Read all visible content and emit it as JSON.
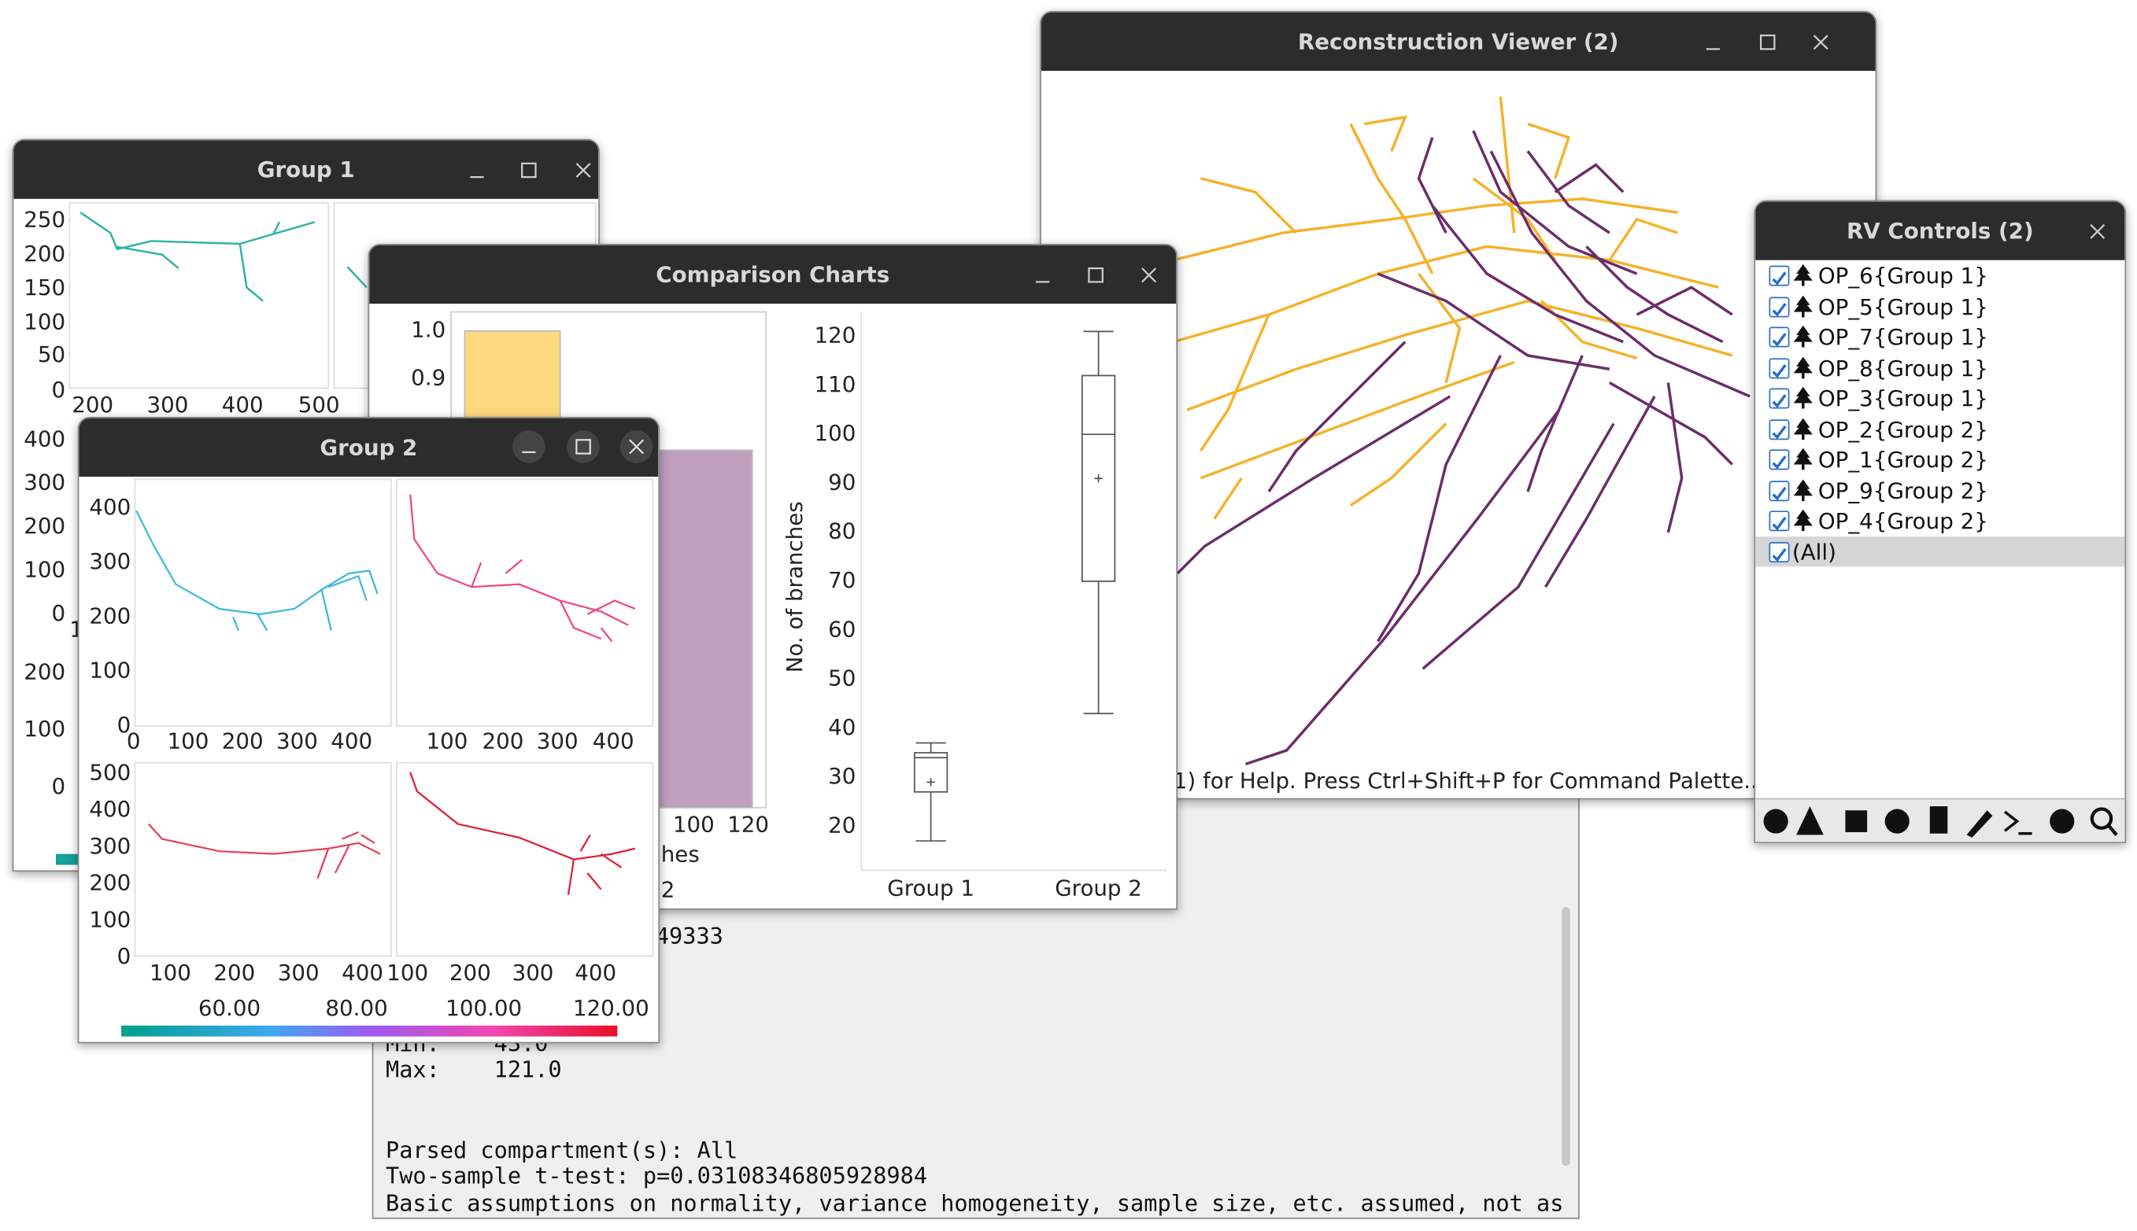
{
  "console": {
    "lines": [
      "49333",
      "Min:    43.0",
      "Max:    121.0",
      "Parsed compartment(s): All",
      "Two-sample t-test: p=0.03108346805928984",
      "Basic assumptions on normality, variance homogeneity, sample size, etc. assumed, not as"
    ]
  },
  "reconstruction_viewer": {
    "title": "Reconstruction Viewer (2)",
    "status": "1) for Help. Press Ctrl+Shift+P for Command Palette..."
  },
  "rv_controls": {
    "title": "RV Controls (2)",
    "items": [
      "OP_6{Group 1}",
      "OP_5{Group 1}",
      "OP_7{Group 1}",
      "OP_8{Group 1}",
      "OP_3{Group 1}",
      "OP_2{Group 2}",
      "OP_1{Group 2}",
      "OP_9{Group 2}",
      "OP_4{Group 2}",
      "(All)"
    ]
  },
  "group_1": {
    "title": "Group 1",
    "top_yticks": [
      250,
      200,
      150,
      100,
      50,
      0
    ],
    "top_xticks": [
      200,
      300,
      400,
      500
    ],
    "middle_yticks": [
      400,
      300,
      200,
      100,
      0
    ],
    "fragment": "1",
    "bottom_yticks": [
      200,
      100,
      0
    ]
  },
  "comparison_charts": {
    "title": "Comparison Charts",
    "histogram": {
      "type": "histogram",
      "ylim": [
        0,
        1.04
      ],
      "yticks": [
        {
          "value": 1,
          "label": "1.0"
        },
        0.9
      ],
      "xlim": [
        11,
        126.5
      ],
      "xticks": [
        100,
        120
      ],
      "xlabel_fragment": "hes",
      "legend_fragment": "2",
      "bars": [
        {
          "x0": 16,
          "x1": 51,
          "value": 1,
          "color": "#fed97f"
        },
        {
          "x0": 87,
          "x1": 121.5,
          "value": 0.75,
          "color": "#bf9fbd"
        }
      ]
    },
    "box_plot": {
      "type": "box",
      "ylabel": "No. of branches",
      "categories": [
        "Group 1",
        "Group 2"
      ],
      "ylim": [
        11,
        125
      ],
      "yticks": [
        20,
        30,
        40,
        50,
        60,
        70,
        80,
        90,
        100,
        110,
        120
      ],
      "min": [
        17,
        43
      ],
      "q1": [
        27,
        70
      ],
      "median": [
        34,
        100
      ],
      "q3": [
        35,
        112
      ],
      "max": [
        37,
        121
      ],
      "mean": [
        29,
        91
      ]
    }
  },
  "group_2": {
    "title": "Group 2",
    "top_left_yticks": [
      400,
      300,
      200,
      100,
      0
    ],
    "top_left_xticks": [
      0,
      100,
      200,
      300,
      400
    ],
    "top_right_xticks": [
      100,
      200,
      300,
      400
    ],
    "bottom_yticks": [
      500,
      400,
      300,
      200,
      100,
      0
    ],
    "bottom_left_xticks": [
      100,
      200,
      300,
      400
    ],
    "bottom_right_xticks": [
      100,
      200,
      300,
      400
    ],
    "colorbar_range": [
      43,
      121
    ],
    "colorbar_ticks": [
      {
        "value": 60,
        "label": "60.00"
      },
      {
        "value": 80,
        "label": "80.00"
      },
      {
        "value": 100,
        "label": "100.00"
      },
      {
        "value": 120,
        "label": "120.00"
      }
    ]
  }
}
